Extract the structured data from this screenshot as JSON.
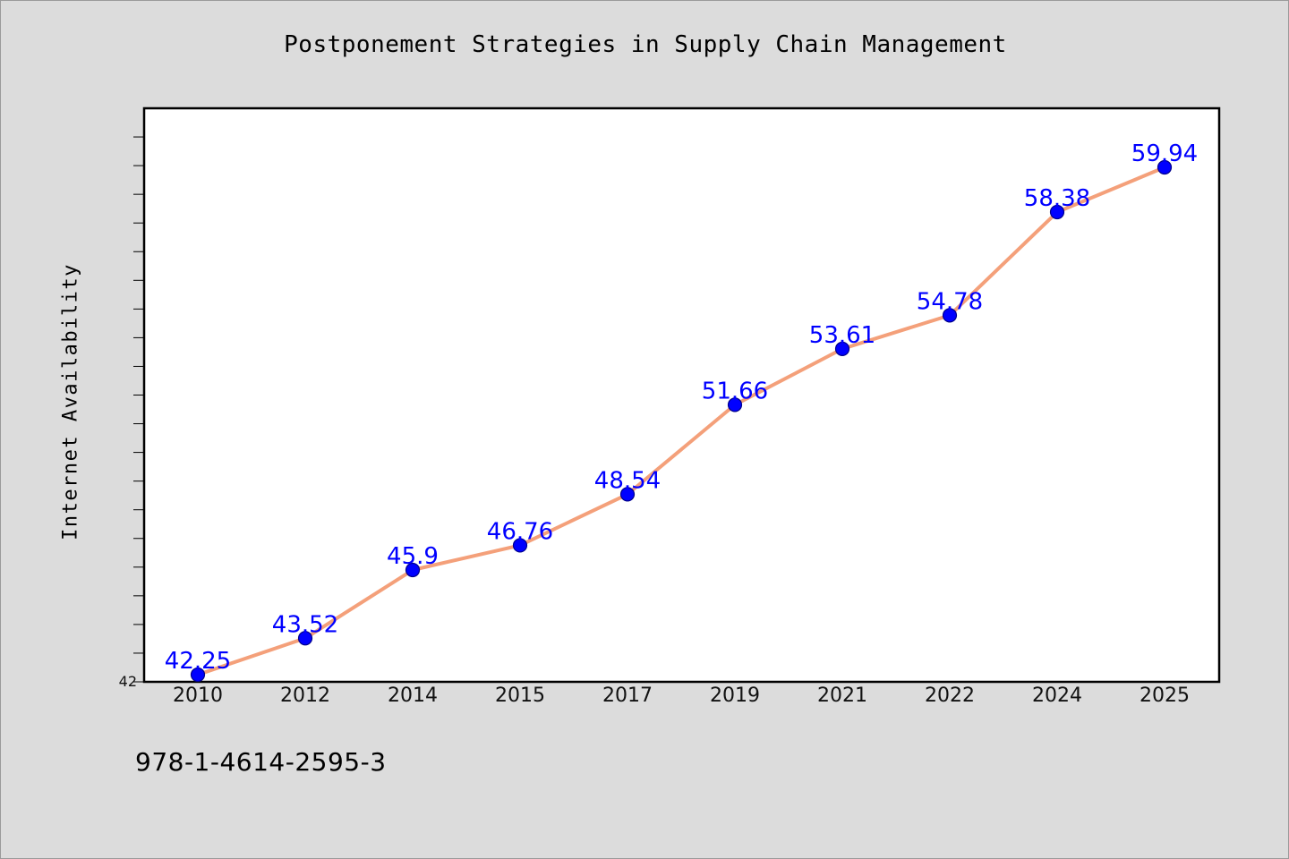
{
  "figure": {
    "title": "Postponement Strategies in Supply Chain Management",
    "footer_code": "978-1-4614-2595-3"
  },
  "chart_data": {
    "type": "line",
    "title": "Postponement Strategies in Supply Chain Management",
    "xlabel": "",
    "ylabel": "Internet Availability",
    "categories": [
      "2010",
      "2012",
      "2014",
      "2015",
      "2017",
      "2019",
      "2021",
      "2022",
      "2024",
      "2025"
    ],
    "series": [
      {
        "values": [
          42.25,
          43.52,
          45.9,
          46.76,
          48.54,
          51.66,
          53.61,
          54.78,
          58.38,
          59.94
        ]
      }
    ],
    "ylim": [
      42,
      62
    ],
    "y_tick_labels_shown": [
      "42"
    ],
    "y_minor_tick_step": 1,
    "grid": false,
    "legend": "none",
    "colors": {
      "line": "#f4a07a",
      "marker": "#0000ff",
      "marker_edge": "#00008b",
      "data_label": "#0000ff",
      "plot_background": "#ffffff",
      "figure_background": "#dcdcdc"
    }
  }
}
